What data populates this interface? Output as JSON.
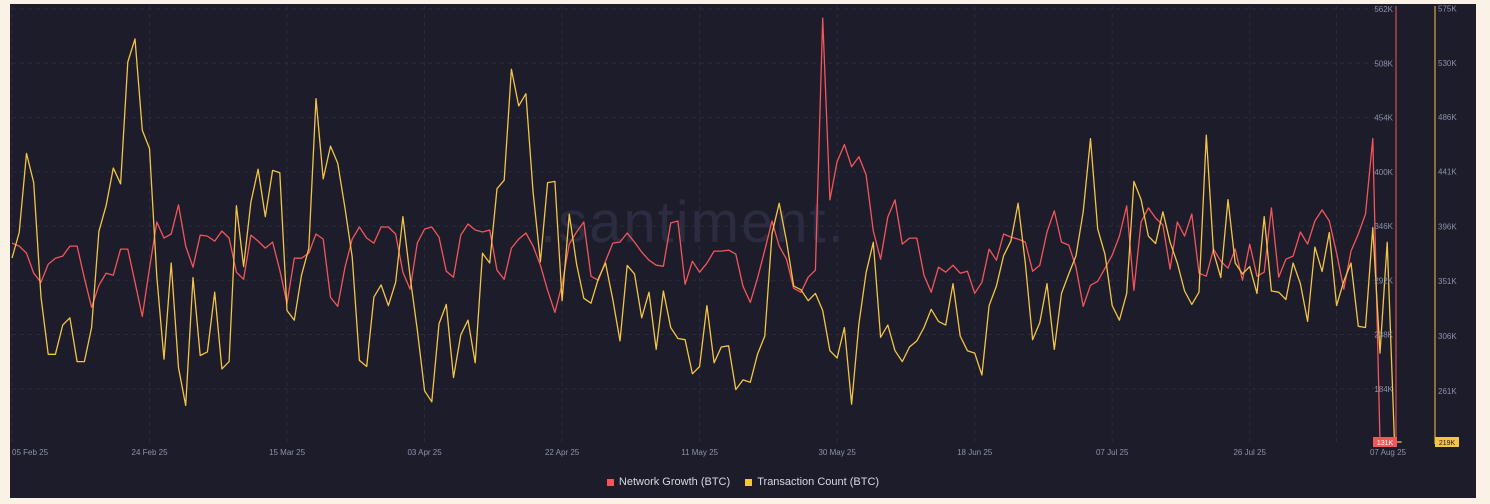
{
  "watermark": ".santiment.",
  "chart_data": {
    "type": "line",
    "x_labels": [
      "05 Feb 25",
      "24 Feb 25",
      "15 Mar 25",
      "03 Apr 25",
      "22 Apr 25",
      "11 May 25",
      "30 May 25",
      "18 Jun 25",
      "07 Jul 25",
      "26 Jul 25",
      "07 Aug 25"
    ],
    "x_label_index": [
      0,
      19,
      38,
      57,
      76,
      95,
      114,
      133,
      152,
      171,
      183
    ],
    "left_axis": {
      "name": "Network Growth (BTC)",
      "ticks": [
        "562K",
        "508K",
        "454K",
        "400K",
        "346K",
        "292K",
        "238K",
        "184K"
      ],
      "tick_values": [
        562000,
        508000,
        454000,
        400000,
        346000,
        292000,
        238000,
        184000
      ],
      "range": [
        131000,
        565000
      ],
      "current": "131K",
      "color": "#f2565b"
    },
    "right_axis": {
      "name": "Transaction Count (BTC)",
      "ticks": [
        "575K",
        "530K",
        "486K",
        "441K",
        "396K",
        "351K",
        "306K",
        "261K"
      ],
      "tick_values": [
        575000,
        530000,
        486000,
        441000,
        396000,
        351000,
        306000,
        261000
      ],
      "range": [
        219000,
        577000
      ],
      "current": "219K",
      "color": "#f3c446"
    },
    "series": [
      {
        "name": "Network Growth (BTC)",
        "color": "#f2565b",
        "values": [
          329,
          326,
          319,
          299,
          290,
          308,
          314,
          316,
          326,
          326,
          294,
          265,
          287,
          299,
          297,
          323,
          323,
          290,
          256,
          304,
          350,
          334,
          338,
          367,
          326,
          305,
          337,
          336,
          331,
          341,
          334,
          300,
          293,
          337,
          331,
          324,
          330,
          302,
          269,
          314,
          314,
          319,
          338,
          333,
          275,
          266,
          305,
          333,
          345,
          334,
          329,
          345,
          345,
          338,
          300,
          283,
          329,
          343,
          345,
          335,
          301,
          295,
          337,
          348,
          342,
          340,
          342,
          302,
          293,
          324,
          333,
          339,
          326,
          307,
          282,
          260,
          288,
          328,
          340,
          350,
          296,
          292,
          311,
          329,
          330,
          339,
          330,
          320,
          312,
          307,
          306,
          349,
          351,
          288,
          311,
          300,
          309,
          321,
          321,
          322,
          318,
          286,
          270,
          294,
          322,
          351,
          326,
          313,
          284,
          280,
          295,
          302,
          553,
          372,
          410,
          427,
          405,
          415,
          397,
          341,
          313,
          355,
          372,
          328,
          334,
          334,
          297,
          280,
          305,
          300,
          307,
          299,
          301,
          279,
          290,
          323,
          312,
          338,
          335,
          333,
          330,
          301,
          307,
          340,
          361,
          330,
          327,
          305,
          266,
          287,
          291,
          304,
          317,
          336,
          366,
          282,
          350,
          364,
          354,
          347,
          303,
          350,
          336,
          358,
          299,
          296,
          323,
          311,
          304,
          323,
          292,
          328,
          296,
          300,
          364,
          295,
          313,
          316,
          340,
          328,
          351,
          362,
          351,
          319,
          283,
          321,
          338,
          358,
          433,
          131
        ]
      },
      {
        "name": "Transaction Count (BTC)",
        "color": "#f3c446",
        "values": [
          370,
          391,
          456,
          432,
          338,
          291,
          291,
          315,
          321,
          285,
          285,
          313,
          392,
          413,
          444,
          431,
          531,
          550,
          475,
          460,
          355,
          287,
          366,
          280,
          249,
          354,
          290,
          293,
          342,
          279,
          285,
          413,
          363,
          416,
          443,
          404,
          442,
          440,
          327,
          319,
          356,
          378,
          501,
          435,
          462,
          448,
          411,
          371,
          286,
          281,
          338,
          348,
          331,
          350,
          404,
          355,
          311,
          261,
          252,
          316,
          332,
          272,
          307,
          319,
          284,
          374,
          366,
          427,
          434,
          525,
          495,
          505,
          424,
          367,
          432,
          433,
          335,
          406,
          365,
          337,
          333,
          353,
          366,
          336,
          302,
          364,
          357,
          321,
          342,
          295,
          343,
          313,
          304,
          303,
          275,
          281,
          331,
          284,
          297,
          298,
          262,
          270,
          268,
          291,
          306,
          390,
          415,
          384,
          347,
          344,
          335,
          341,
          327,
          294,
          288,
          313,
          250,
          316,
          358,
          383,
          305,
          315,
          294,
          285,
          297,
          302,
          313,
          328,
          318,
          315,
          349,
          306,
          294,
          292,
          274,
          331,
          347,
          372,
          384,
          415,
          366,
          303,
          317,
          349,
          295,
          341,
          357,
          372,
          408,
          468,
          394,
          373,
          331,
          319,
          341,
          433,
          418,
          388,
          382,
          408,
          383,
          366,
          343,
          332,
          342,
          471,
          375,
          354,
          418,
          366,
          357,
          363,
          341,
          404,
          343,
          342,
          336,
          366,
          349,
          318,
          379,
          359,
          391,
          331,
          351,
          366,
          314,
          313,
          395,
          292,
          383,
          219,
          219
        ]
      }
    ],
    "legend_position": "bottom-center",
    "grid": true
  },
  "legend": [
    {
      "label": "Network Growth (BTC)",
      "color": "#f2565b"
    },
    {
      "label": "Transaction Count (BTC)",
      "color": "#f3c446"
    }
  ]
}
